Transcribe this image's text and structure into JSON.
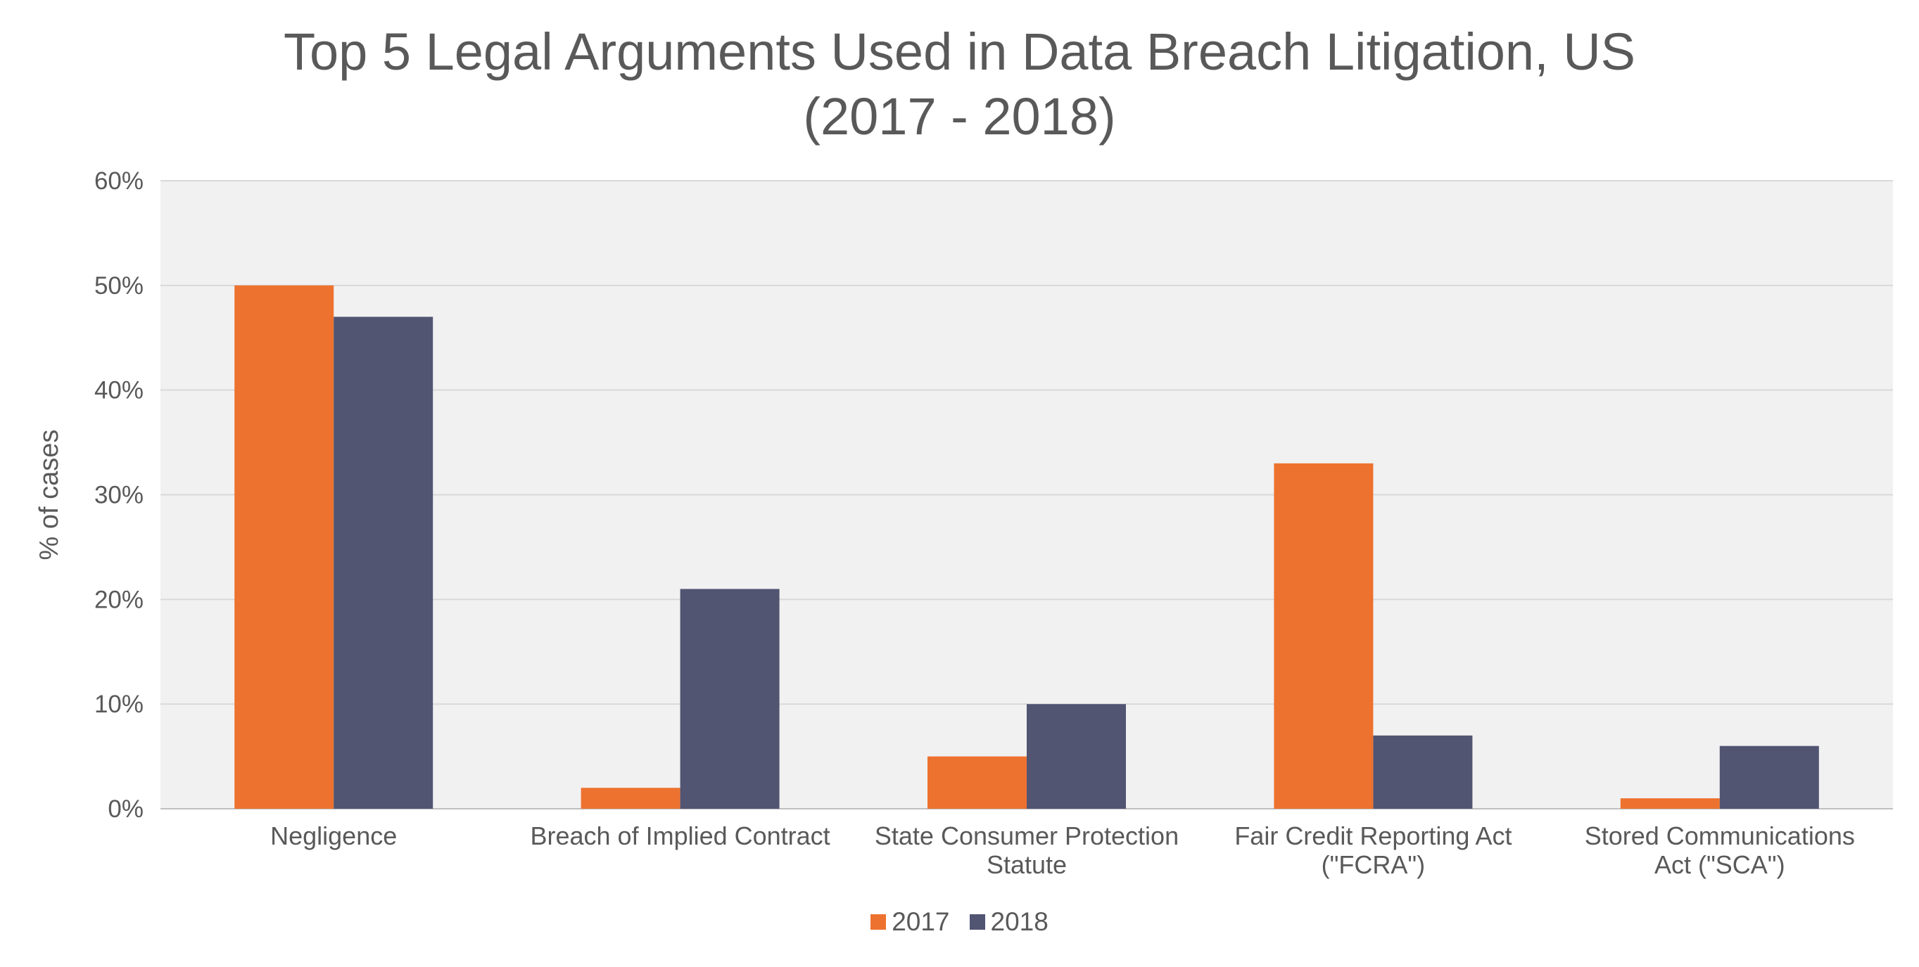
{
  "chart_data": {
    "type": "bar",
    "title": "Top 5 Legal Arguments Used in Data Breach Litigation, US",
    "subtitle": "(2017 - 2018)",
    "xlabel": "",
    "ylabel": "% of cases",
    "ylim": [
      0,
      60
    ],
    "y_ticks": [
      "0%",
      "10%",
      "20%",
      "30%",
      "40%",
      "50%",
      "60%"
    ],
    "y_tick_values": [
      0,
      10,
      20,
      30,
      40,
      50,
      60
    ],
    "grid": true,
    "legend_position": "bottom",
    "categories": [
      [
        "Negligence"
      ],
      [
        "Breach of Implied Contract"
      ],
      [
        "State Consumer Protection",
        "Statute"
      ],
      [
        "Fair Credit Reporting Act",
        "(\"FCRA\")"
      ],
      [
        "Stored Communications",
        "Act (\"SCA\")"
      ]
    ],
    "series": [
      {
        "name": "2017",
        "color": "#ED722F",
        "values": [
          50,
          2,
          5,
          33,
          1
        ]
      },
      {
        "name": "2018",
        "color": "#515572",
        "values": [
          47,
          21,
          10,
          7,
          6
        ]
      }
    ],
    "plot_background": "#F1F1F1",
    "grid_color": "#D9D9D9"
  }
}
